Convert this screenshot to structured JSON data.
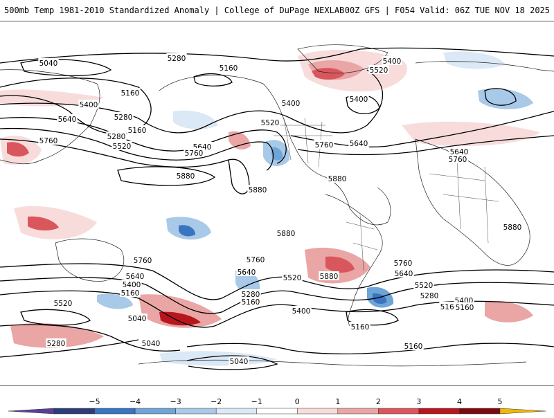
{
  "header": {
    "left": "500mb Temp 1981-2010 Standardized Anomaly | College of DuPage NEXLAB",
    "right": "00Z GFS | F054 Valid: 06Z TUE NOV 18 2025"
  },
  "colorbar": {
    "ticks": [
      "-5",
      "-4",
      "-3",
      "-2",
      "-1",
      "0",
      "1",
      "2",
      "3",
      "4",
      "5"
    ],
    "colors": [
      "#5a3e9a",
      "#2d3c78",
      "#3b74c0",
      "#6fa4d6",
      "#a8c9e8",
      "#dbe8f5",
      "#ffffff",
      "#f8dcdc",
      "#eaa5a5",
      "#d9575c",
      "#b8161d",
      "#7a0a0f",
      "#f2b705"
    ]
  },
  "contour_labels": [
    {
      "text": "5040"
    },
    {
      "text": "5280"
    },
    {
      "text": "5160"
    },
    {
      "text": "5160"
    },
    {
      "text": "5400"
    },
    {
      "text": "5640"
    },
    {
      "text": "5280"
    },
    {
      "text": "5160"
    },
    {
      "text": "5520"
    },
    {
      "text": "5760"
    },
    {
      "text": "5640"
    },
    {
      "text": "5760"
    },
    {
      "text": "5880"
    },
    {
      "text": "5280"
    },
    {
      "text": "5400"
    },
    {
      "text": "5520"
    },
    {
      "text": "5880"
    },
    {
      "text": "5760"
    },
    {
      "text": "5640"
    },
    {
      "text": "5400"
    },
    {
      "text": "5520"
    },
    {
      "text": "5400"
    },
    {
      "text": "5880"
    },
    {
      "text": "5640"
    },
    {
      "text": "5760"
    },
    {
      "text": "5880"
    },
    {
      "text": "5880"
    },
    {
      "text": "5760"
    },
    {
      "text": "5640"
    },
    {
      "text": "5400"
    },
    {
      "text": "5160"
    },
    {
      "text": "5520"
    },
    {
      "text": "5040"
    },
    {
      "text": "5280"
    },
    {
      "text": "5760"
    },
    {
      "text": "5640"
    },
    {
      "text": "5280"
    },
    {
      "text": "5160"
    },
    {
      "text": "5520"
    },
    {
      "text": "5880"
    },
    {
      "text": "5400"
    },
    {
      "text": "5160"
    },
    {
      "text": "5760"
    },
    {
      "text": "5640"
    },
    {
      "text": "5520"
    },
    {
      "text": "5280"
    },
    {
      "text": "5400"
    },
    {
      "text": "5160"
    },
    {
      "text": "5040"
    },
    {
      "text": "5160"
    },
    {
      "text": "5040"
    },
    {
      "text": "5160"
    }
  ]
}
